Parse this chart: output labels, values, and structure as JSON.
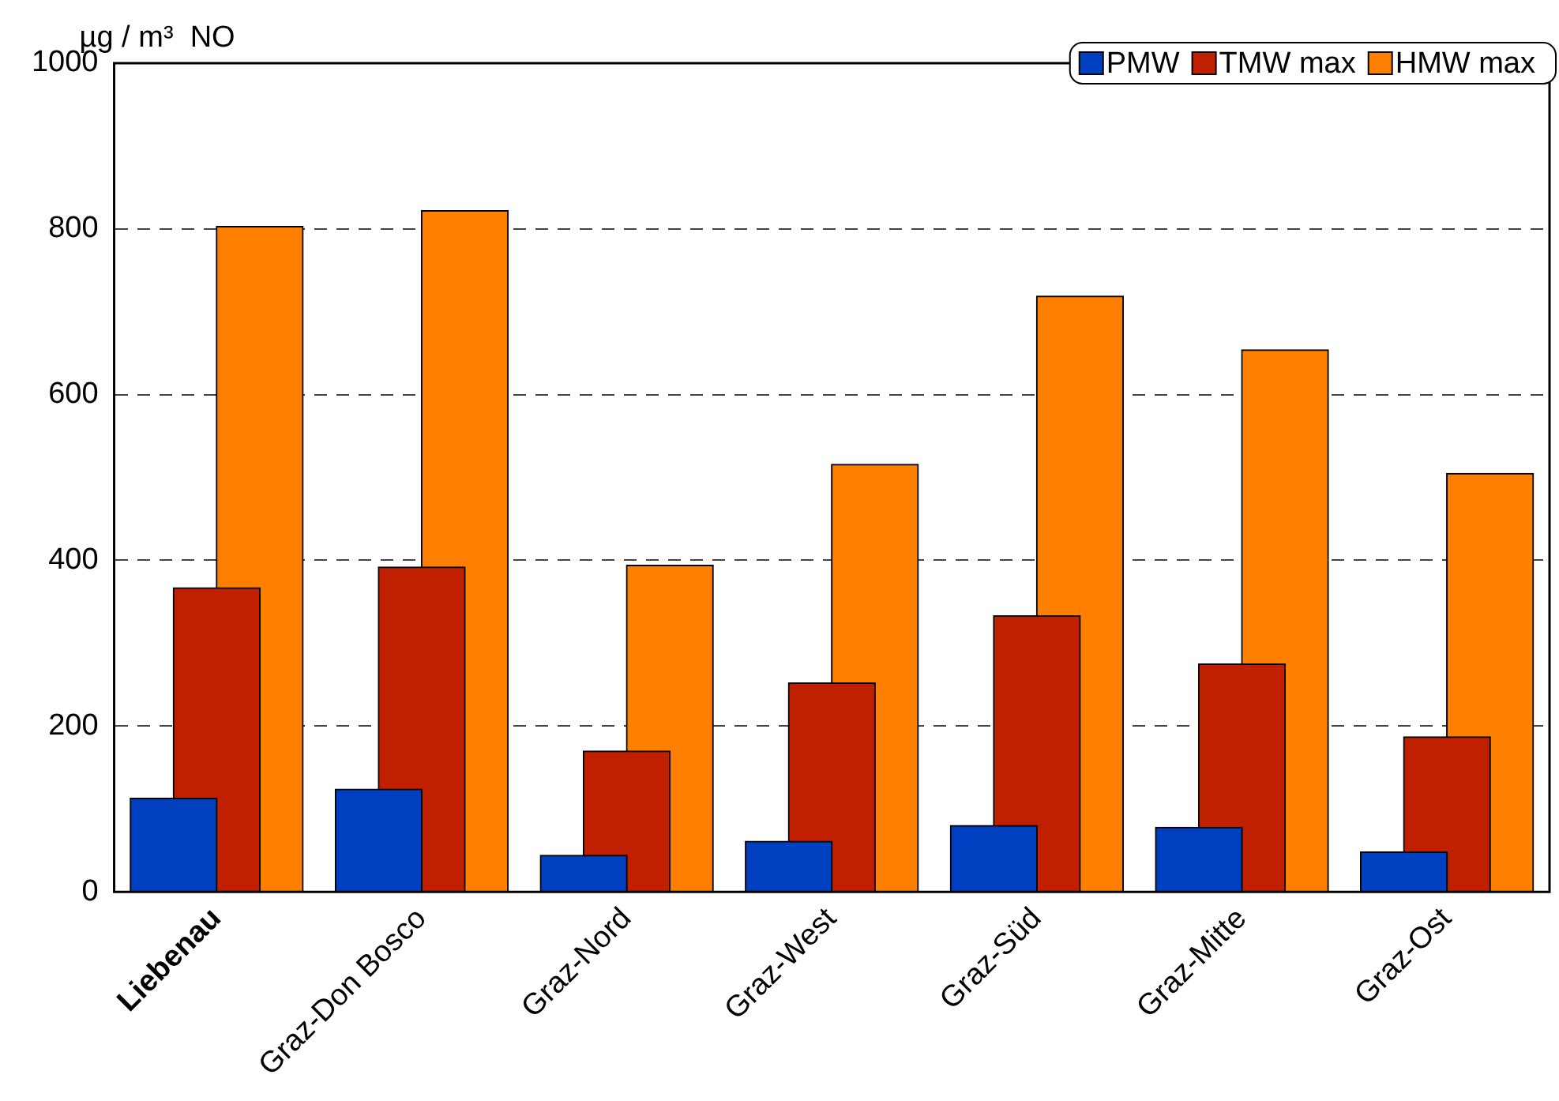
{
  "chart_data": {
    "type": "bar",
    "ylabel": "µg / m³  NO",
    "categories": [
      "Liebenau",
      "Graz-Don Bosco",
      "Graz-Nord",
      "Graz-West",
      "Graz-Süd",
      "Graz-Mitte",
      "Graz-Ost"
    ],
    "series": [
      {
        "name": "PMW",
        "color": "#0040c0",
        "values": [
          113,
          124,
          44,
          61,
          80,
          78,
          48
        ]
      },
      {
        "name": "TMW max",
        "color": "#c02000",
        "values": [
          367,
          392,
          170,
          252,
          333,
          275,
          187
        ]
      },
      {
        "name": "HMW max",
        "color": "#ff8000",
        "values": [
          803,
          822,
          394,
          516,
          719,
          654,
          505
        ]
      }
    ],
    "ylim": [
      0,
      1000
    ],
    "yticks": [
      0,
      200,
      400,
      600,
      800,
      1000
    ],
    "grid": "y",
    "legend": "top right"
  }
}
